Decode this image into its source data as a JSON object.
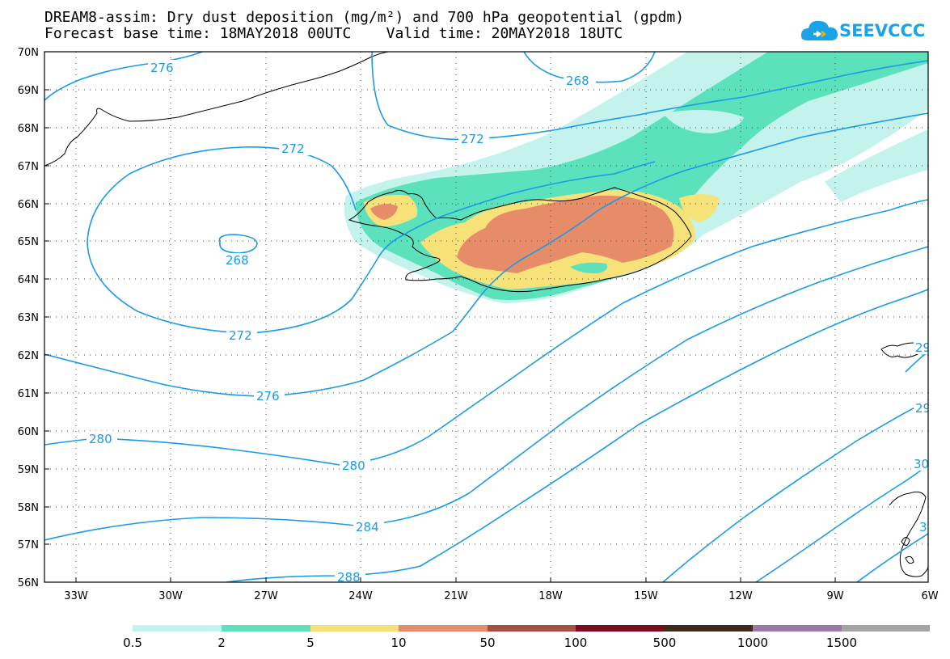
{
  "title_line1": "DREAM8-assim: Dry dust deposition (mg/m²) and 700 hPa geopotential (gpdm)",
  "title_line2": "Forecast base time: 18MAY2018 00UTC    Valid time: 20MAY2018 18UTC",
  "logo_text": "SEEVCCC",
  "colors": {
    "contour": "#1a9be6",
    "coast": "#000000",
    "bins": [
      "#c4f2ec",
      "#5ce1bd",
      "#f7e27a",
      "#e68c68",
      "#a65040",
      "#7a0a1e",
      "#3c2a18",
      "#9b78a6",
      "#a4a4a4"
    ]
  },
  "lat_labels": [
    "70N",
    "69N",
    "68N",
    "67N",
    "66N",
    "65N",
    "64N",
    "63N",
    "62N",
    "61N",
    "60N",
    "59N",
    "58N",
    "57N",
    "56N"
  ],
  "lon_labels": [
    "33W",
    "30W",
    "27W",
    "24W",
    "21W",
    "18W",
    "15W",
    "12W",
    "9W",
    "6W"
  ],
  "contour_labels": {
    "c276_top": "276",
    "c268_top": "268",
    "c272_top": "272",
    "c272_west": "272",
    "c268_low": "268",
    "c272_south": "272",
    "c276_mid": "276",
    "c280_west": "280",
    "c280_mid": "280",
    "c284": "284",
    "c288": "288",
    "c29_a": "29",
    "c29_b": "29",
    "c30": "30",
    "c3_edge": "3"
  },
  "colorbar": {
    "labels": [
      "0.5",
      "2",
      "5",
      "10",
      "50",
      "100",
      "500",
      "1000",
      "1500"
    ]
  }
}
